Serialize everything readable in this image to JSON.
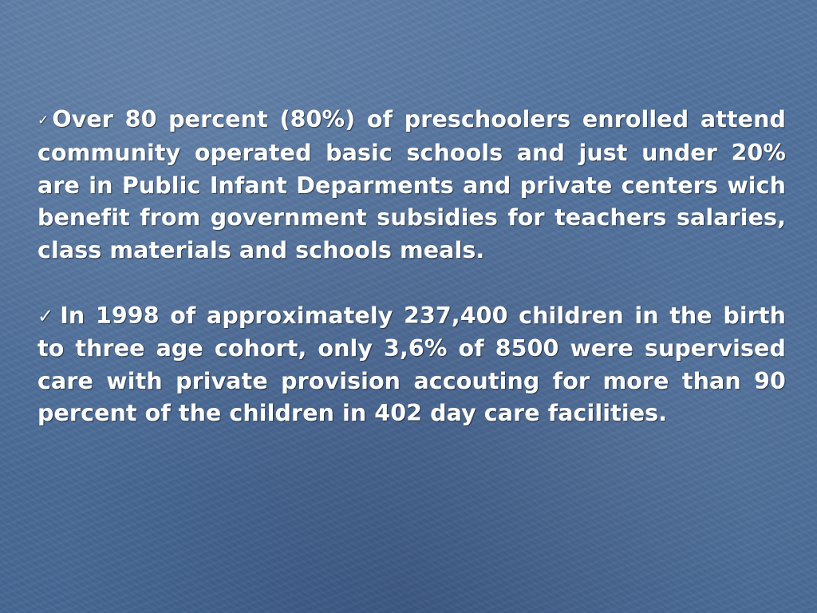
{
  "slide": {
    "bullets": [
      {
        "marker": "✓",
        "text": "Over 80 percent (80%) of preschoolers enrolled attend community operated basic schools and just under 20% are in Public Infant Deparments and private centers wich benefit from government subsidies for teachers salaries, class materials and schools meals."
      },
      {
        "marker": "✓",
        "text": "In 1998 of approximately 237,400 children in the birth to three age cohort, only 3,6% of 8500 were supervised care with private provision accouting for more than 90 percent of the children in 402 day care facilities."
      }
    ]
  }
}
